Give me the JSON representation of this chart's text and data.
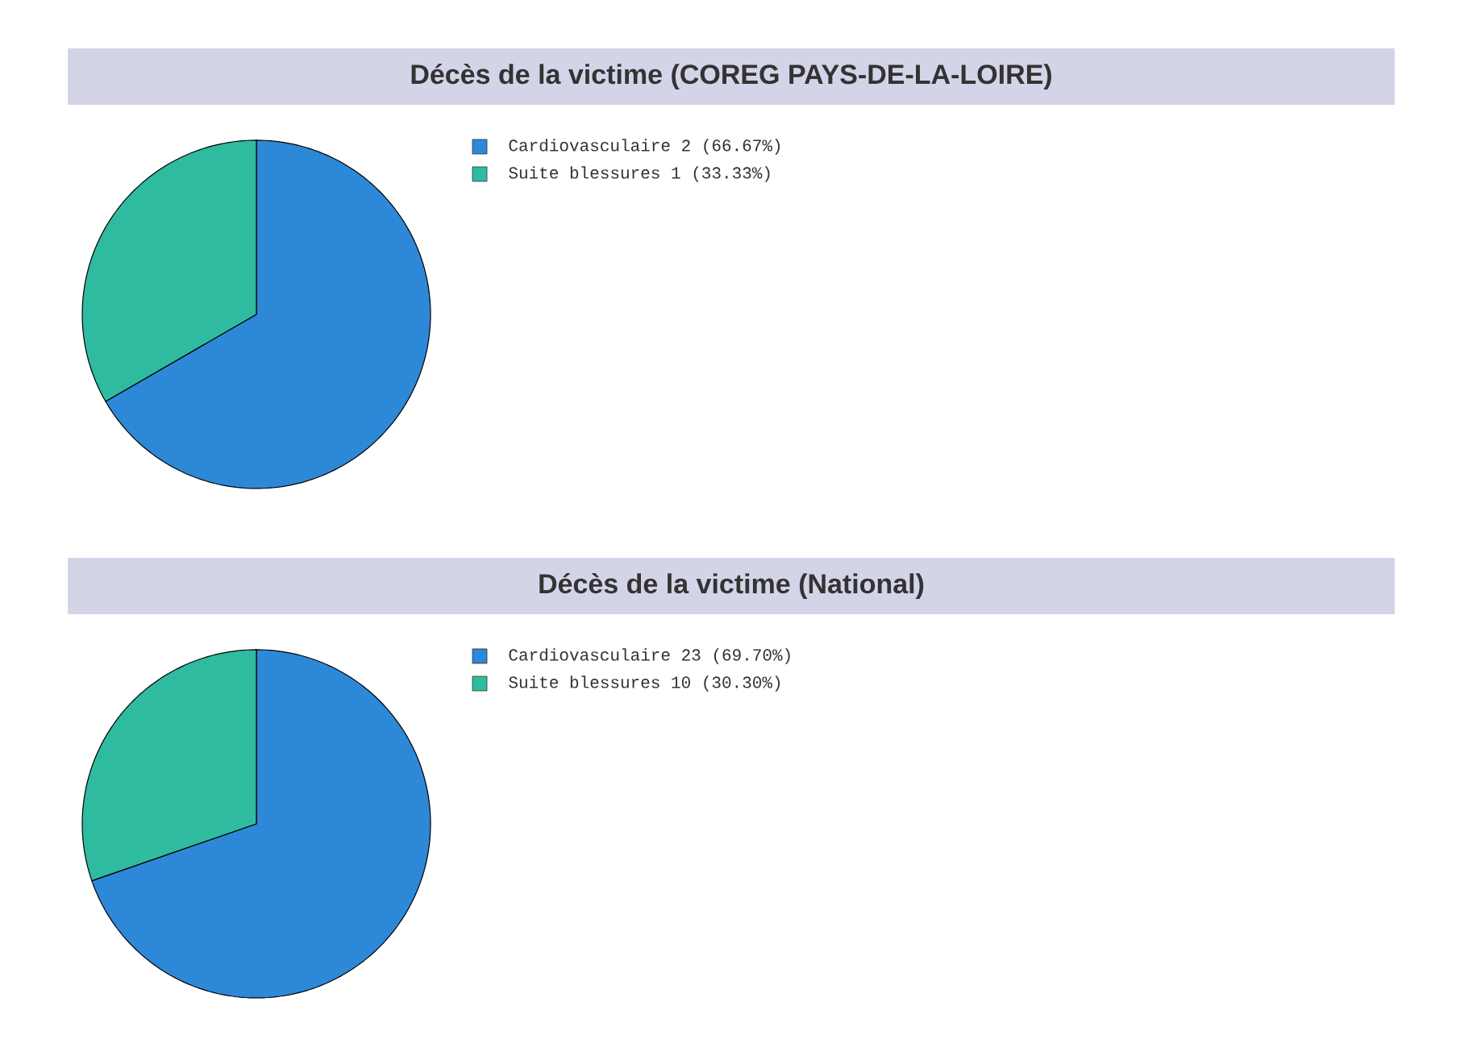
{
  "chart_data": [
    {
      "type": "pie",
      "title": "Décès de la victime (COREG PAYS-DE-LA-LOIRE)",
      "categories": [
        "Cardiovasculaire 2 (66.67%)",
        "Suite blessures 1 (33.33%)"
      ],
      "values": [
        2,
        1
      ],
      "colors": [
        "#2e88d8",
        "#2fbba0"
      ],
      "legend": "right"
    },
    {
      "type": "pie",
      "title": "Décès de la victime (National)",
      "categories": [
        "Cardiovasculaire 23 (69.70%)",
        "Suite blessures 10 (30.30%)"
      ],
      "values": [
        23,
        10
      ],
      "colors": [
        "#2e88d8",
        "#2fbba0"
      ],
      "legend": "right"
    }
  ]
}
